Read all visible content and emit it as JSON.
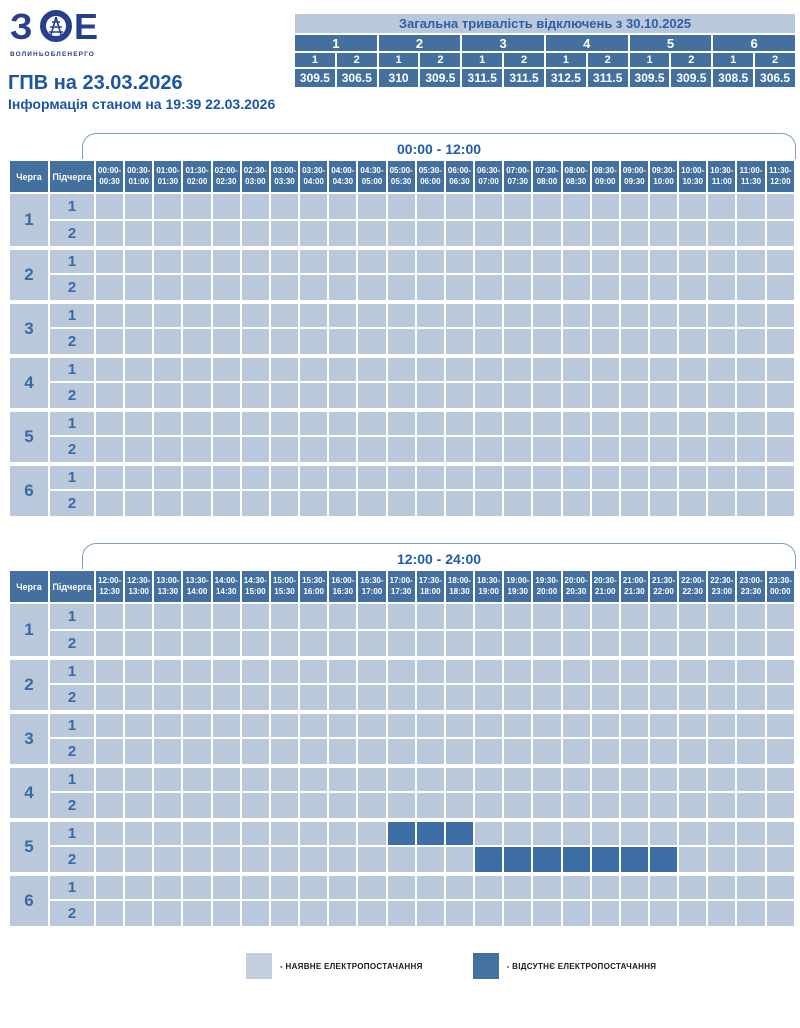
{
  "logo": {
    "letter_z": "З",
    "letter_e": "Е",
    "company": "ВОЛИНЬОБЛЕНЕРГО"
  },
  "header": {
    "title": "ГПВ на 23.03.2026",
    "subtitle": "Інформація станом на 19:39 22.03.2026"
  },
  "summary": {
    "title": "Загальна тривалість відключень з 30.10.2025",
    "subgroup_labels": [
      "1",
      "2"
    ],
    "groups": [
      {
        "queue": "1",
        "values": [
          "309.5",
          "306.5"
        ]
      },
      {
        "queue": "2",
        "values": [
          "310",
          "309.5"
        ]
      },
      {
        "queue": "3",
        "values": [
          "311.5",
          "311.5"
        ]
      },
      {
        "queue": "4",
        "values": [
          "312.5",
          "311.5"
        ]
      },
      {
        "queue": "5",
        "values": [
          "309.5",
          "309.5"
        ]
      },
      {
        "queue": "6",
        "values": [
          "308.5",
          "306.5"
        ]
      }
    ]
  },
  "schedule": {
    "queue_header": "Черга",
    "subqueue_header": "Підчерга",
    "queues": [
      "1",
      "2",
      "3",
      "4",
      "5",
      "6"
    ],
    "subqueues": [
      "1",
      "2"
    ],
    "tables": [
      {
        "period": "00:00 - 12:00",
        "slots": [
          "00:00-00:30",
          "00:30-01:00",
          "01:00-01:30",
          "01:30-02:00",
          "02:00-02:30",
          "02:30-03:00",
          "03:00-03:30",
          "03:30-04:00",
          "04:00-04:30",
          "04:30-05:00",
          "05:00-05:30",
          "05:30-06:00",
          "06:00-06:30",
          "06:30-07:00",
          "07:00-07:30",
          "07:30-08:00",
          "08:00-08:30",
          "08:30-09:00",
          "09:00-09:30",
          "09:30-10:00",
          "10:00-10:30",
          "10:30-11:00",
          "11:00-11:30",
          "11:30-12:00"
        ],
        "outages": []
      },
      {
        "period": "12:00 - 24:00",
        "slots": [
          "12:00-12:30",
          "12:30-13:00",
          "13:00-13:30",
          "13:30-14:00",
          "14:00-14:30",
          "14:30-15:00",
          "15:00-15:30",
          "15:30-16:00",
          "16:00-16:30",
          "16:30-17:00",
          "17:00-17:30",
          "17:30-18:00",
          "18:00-18:30",
          "18:30-19:00",
          "19:00-19:30",
          "19:30-20:00",
          "20:00-20:30",
          "20:30-21:00",
          "21:00-21:30",
          "21:30-22:00",
          "22:00-22:30",
          "22:30-23:00",
          "23:00-23:30",
          "23:30-00:00"
        ],
        "outages": [
          {
            "queue": "5",
            "subqueue": "1",
            "slot_indices": [
              10,
              11,
              12
            ],
            "slots": [
              "17:00-17:30",
              "17:30-18:00",
              "18:00-18:30"
            ]
          },
          {
            "queue": "5",
            "subqueue": "2",
            "slot_indices": [
              13,
              14,
              15,
              16,
              17,
              18,
              19
            ],
            "slots": [
              "18:30-19:00",
              "19:00-19:30",
              "19:30-20:00",
              "20:00-20:30",
              "20:30-21:00",
              "21:00-21:30",
              "21:30-22:00"
            ]
          }
        ]
      }
    ]
  },
  "legend": {
    "available_label": "- НАЯВНЕ ЕЛЕКТРОПОСТАЧАННЯ",
    "absent_label": "- ВІДСУТНЄ ЕЛЕКТРОПОСТАЧАННЯ"
  },
  "colors": {
    "header_blue": "#44709f",
    "cell_available": "#b9c8da",
    "cell_absent": "#3d6ea6",
    "accent_text_blue": "#1d5cb2",
    "title_blue": "#1c55a5",
    "logo_blue": "#283f8d"
  },
  "chart_data": {
    "type": "table",
    "title": "ГПВ на 23.03.2026",
    "subtitle": "Інформація станом на 19:39 22.03.2026",
    "summary_table": {
      "title": "Загальна тривалість відключень з 30.10.2025",
      "columns": [
        "1.1",
        "1.2",
        "2.1",
        "2.2",
        "3.1",
        "3.2",
        "4.1",
        "4.2",
        "5.1",
        "5.2",
        "6.1",
        "6.2"
      ],
      "values_hours": [
        309.5,
        306.5,
        310,
        309.5,
        311.5,
        311.5,
        312.5,
        311.5,
        309.5,
        309.5,
        308.5,
        306.5
      ]
    },
    "outage_grid": {
      "periods": [
        "00:00 - 12:00",
        "12:00 - 24:00"
      ],
      "rows": [
        "1.1",
        "1.2",
        "2.1",
        "2.2",
        "3.1",
        "3.2",
        "4.1",
        "4.2",
        "5.1",
        "5.2",
        "6.1",
        "6.2"
      ],
      "slot_minutes": 30,
      "outage_intervals": [
        {
          "queue": "5",
          "subqueue": "1",
          "from": "17:00",
          "to": "18:30"
        },
        {
          "queue": "5",
          "subqueue": "2",
          "from": "18:30",
          "to": "22:00"
        }
      ]
    },
    "legend": [
      "НАЯВНЕ ЕЛЕКТРОПОСТАЧАННЯ",
      "ВІДСУТНЄ ЕЛЕКТРОПОСТАЧАННЯ"
    ]
  }
}
